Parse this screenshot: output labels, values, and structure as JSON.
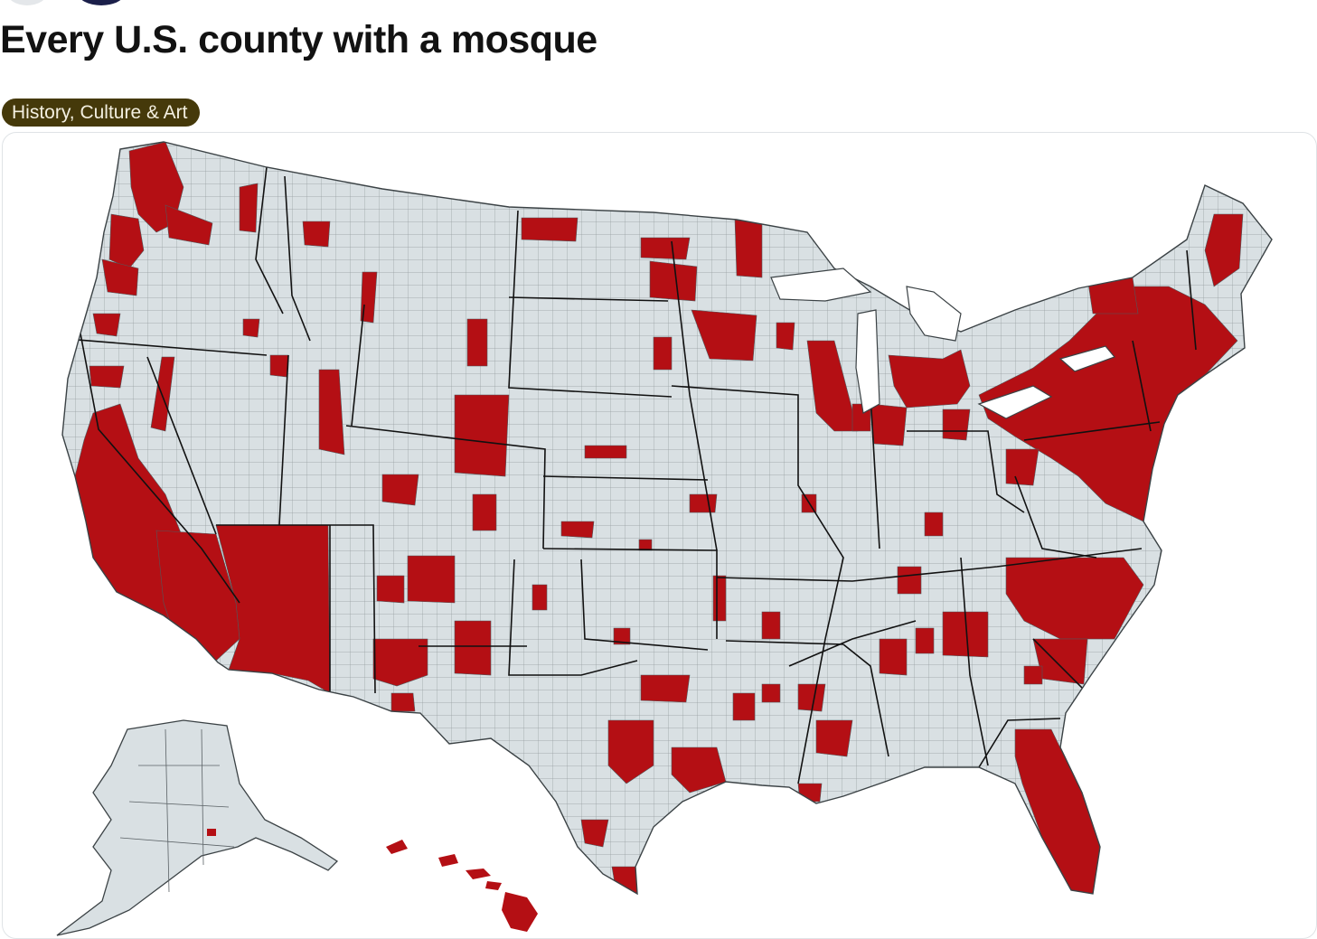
{
  "post": {
    "title": "Every U.S. county with a mosque",
    "tag": "History, Culture & Art"
  },
  "map": {
    "subject": "U.S. counties with at least one mosque",
    "regions_shown": [
      "Contiguous United States",
      "Alaska",
      "Hawaii"
    ],
    "colors": {
      "county_with_mosque": "#b40f14",
      "county_without_mosque": "#d9e0e3",
      "county_border": "#51585c",
      "state_border": "#111111",
      "background": "#ffffff"
    }
  }
}
